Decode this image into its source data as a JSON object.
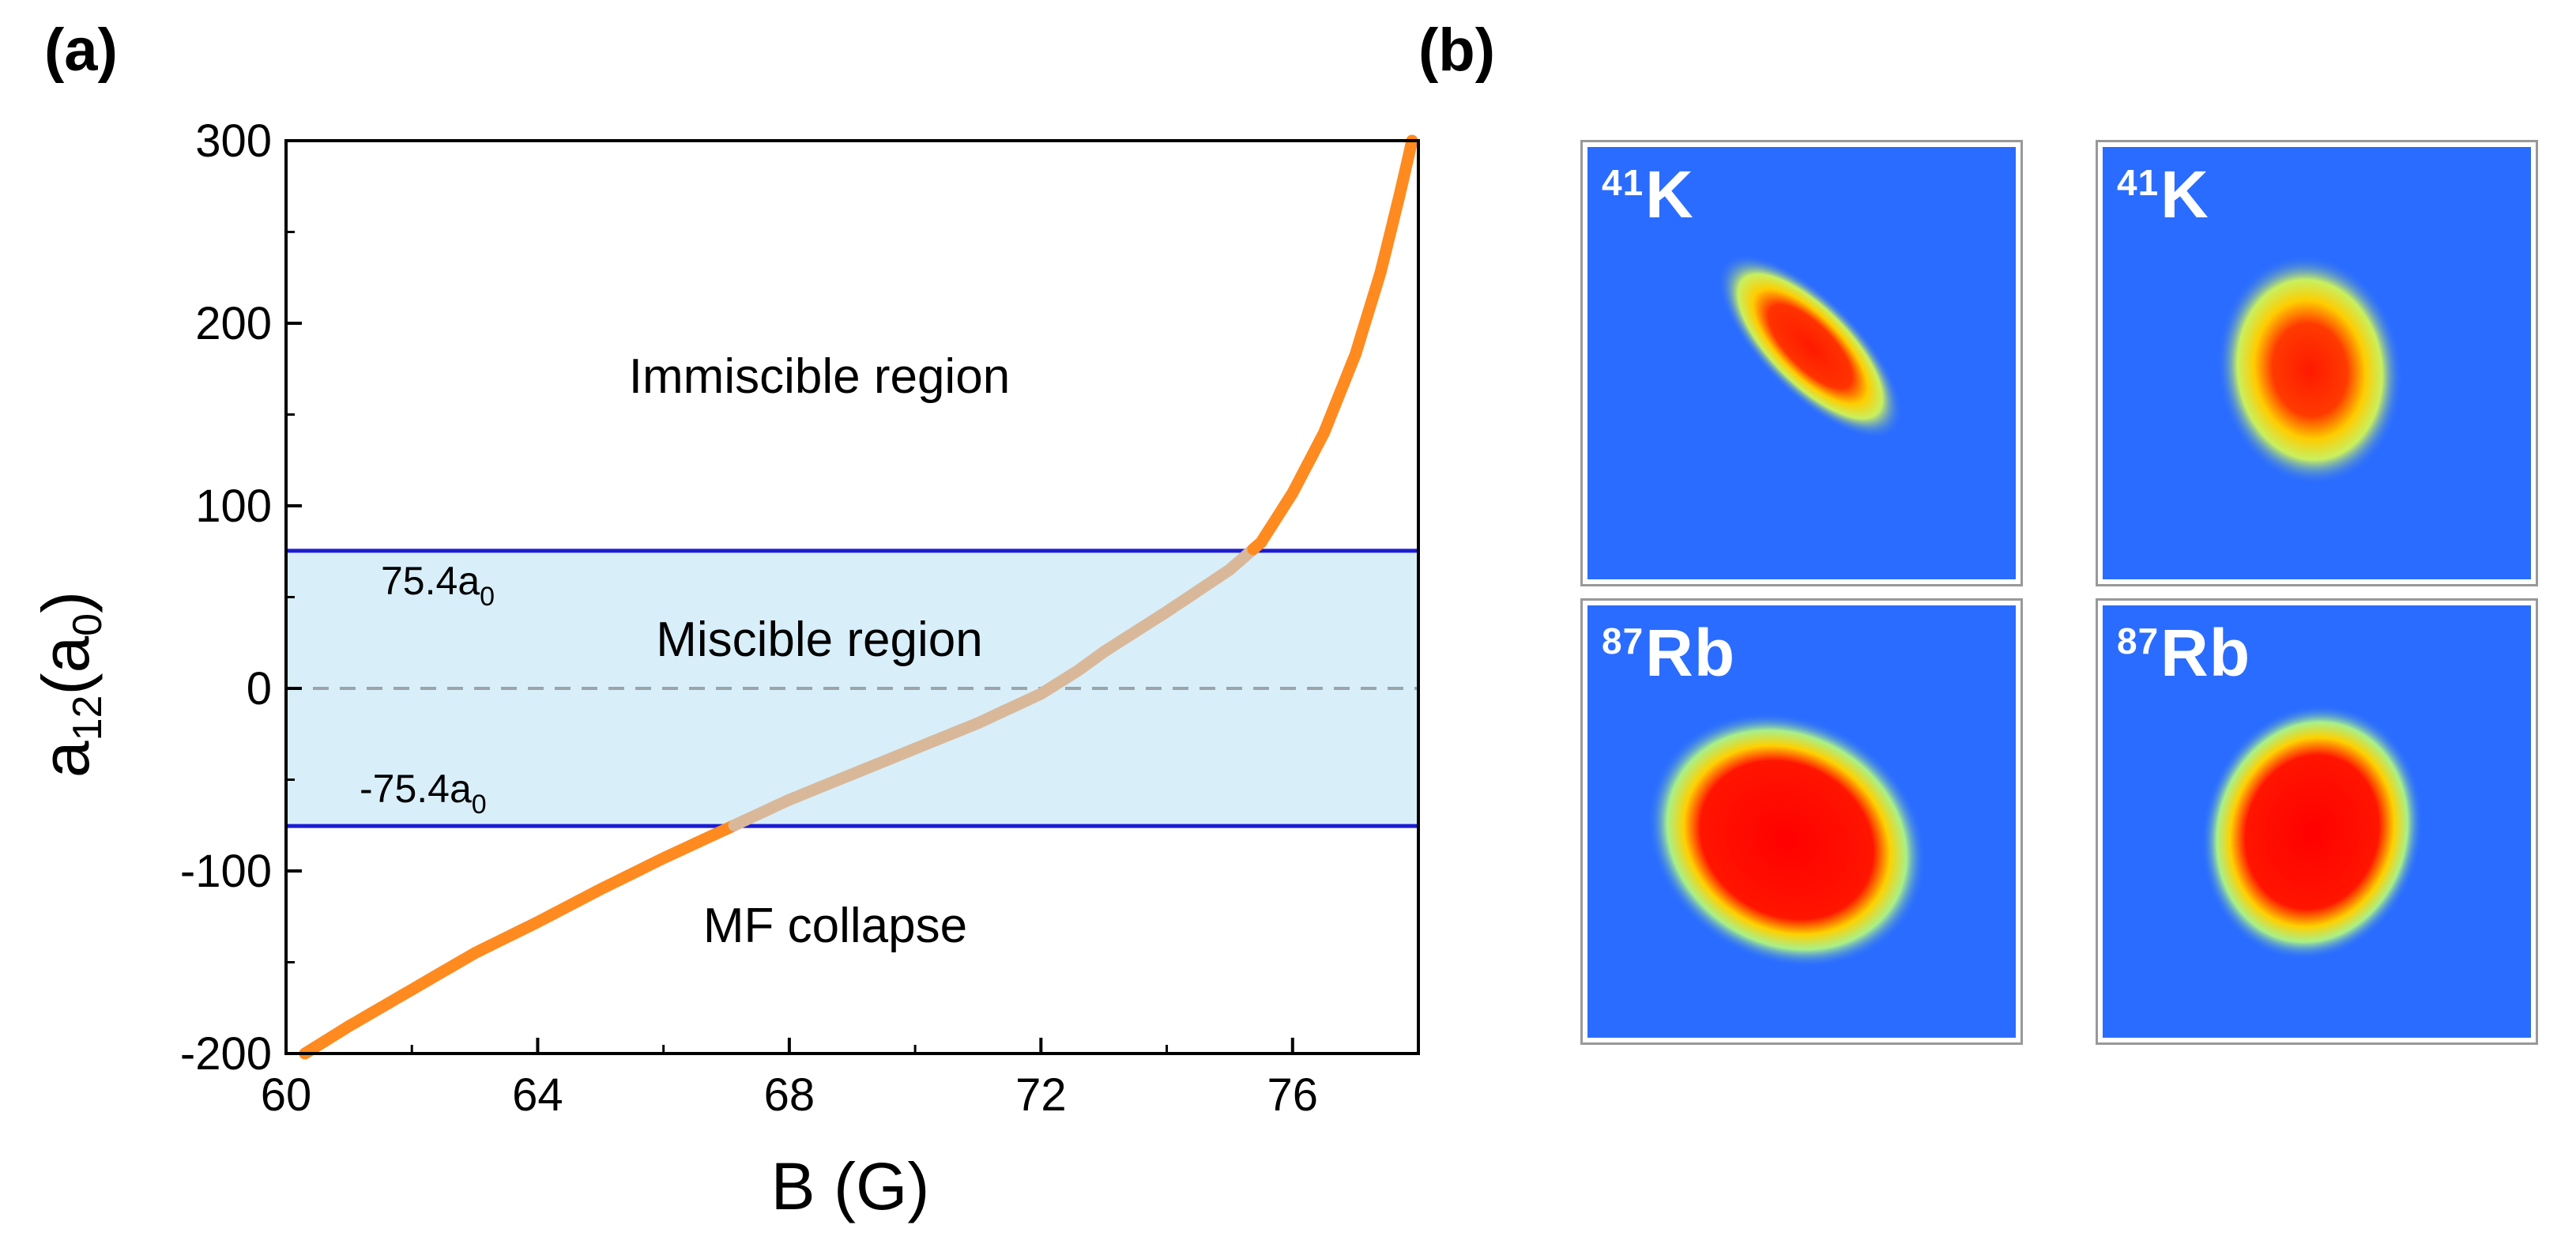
{
  "panels": {
    "a_label": "(a)",
    "b_label": "(b)"
  },
  "colors": {
    "curve": "#ff8a1f",
    "curve_miscible": "#d9b89a",
    "band_fill": "#d8effa",
    "band_line": "#1c1cd4",
    "zero_line": "#9aa4ab"
  },
  "chart_data": {
    "type": "line",
    "title": "",
    "xlabel": "B (G)",
    "ylabel_main": "a",
    "ylabel_sub": "12",
    "ylabel_paren": "(a",
    "ylabel_paren_sub": "0",
    "ylabel_close": ")",
    "xlim": [
      60,
      78
    ],
    "ylim": [
      -200,
      300
    ],
    "xticks": [
      60,
      64,
      68,
      72,
      76
    ],
    "xtick_labels": [
      "60",
      "64",
      "68",
      "72",
      "76"
    ],
    "yticks": [
      -200,
      -100,
      0,
      100,
      200,
      300
    ],
    "ytick_labels": [
      "-200",
      "-100",
      "0",
      "100",
      "200",
      "300"
    ],
    "band": {
      "lower": -75.4,
      "upper": 75.4
    },
    "band_labels": {
      "upper_main": "75.4a",
      "upper_sub": "0",
      "lower_main": "-75.4a",
      "lower_sub": "0"
    },
    "regions": {
      "immiscible": "Immiscible region",
      "miscible": "Miscible region",
      "collapse": "MF collapse"
    },
    "series": [
      {
        "name": "a12(B)",
        "x": [
          60.3,
          61,
          62,
          63,
          64,
          65,
          66,
          67,
          68,
          69,
          70,
          71,
          72,
          72.6,
          73,
          74,
          75,
          75.5,
          76,
          76.5,
          77,
          77.4,
          77.7,
          77.9
        ],
        "y": [
          -200,
          -185,
          -165,
          -145,
          -128,
          -110,
          -93,
          -77,
          -61,
          -47,
          -33,
          -19,
          -3,
          10,
          20,
          42,
          65,
          80,
          107,
          140,
          183,
          228,
          270,
          300
        ]
      }
    ]
  },
  "images": [
    {
      "sup": "41",
      "label": "K"
    },
    {
      "sup": "41",
      "label": "K"
    },
    {
      "sup": "87",
      "label": "Rb"
    },
    {
      "sup": "87",
      "label": "Rb"
    }
  ]
}
